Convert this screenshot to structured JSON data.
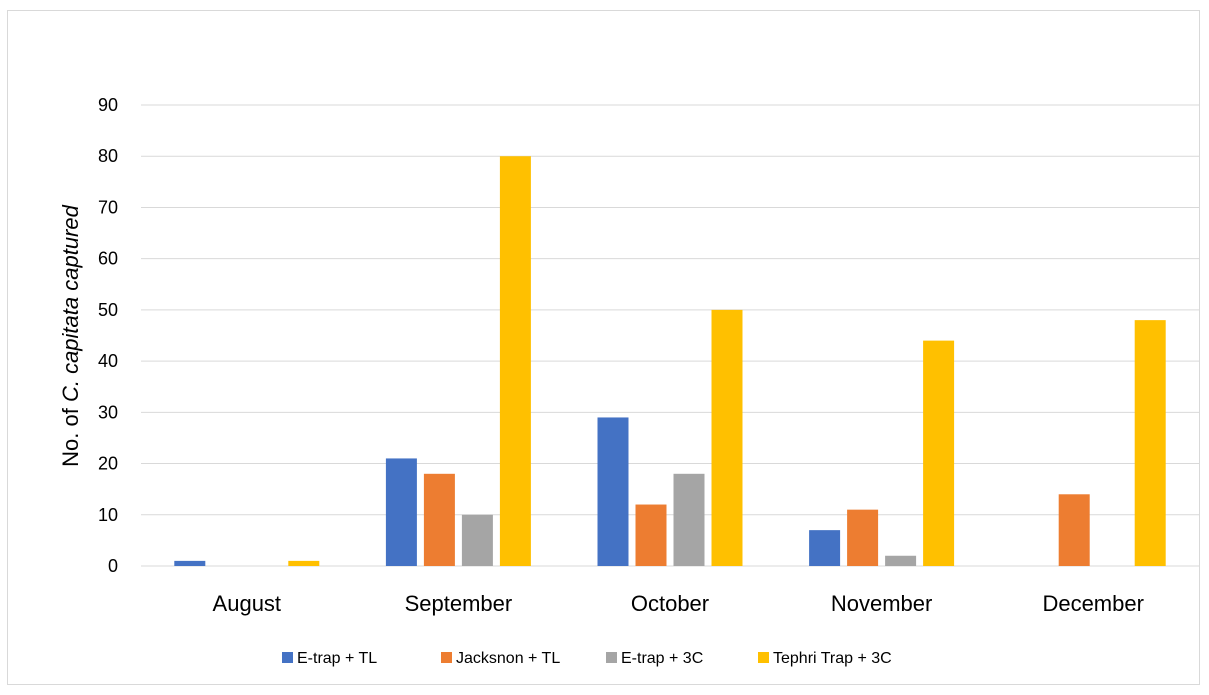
{
  "chart_data": {
    "type": "bar",
    "title": "",
    "xlabel": "",
    "ylabel_parts": [
      {
        "text": "No. of ",
        "italic": false
      },
      {
        "text": "C. capitata captured",
        "italic": true
      }
    ],
    "ylim": [
      0,
      90
    ],
    "yticks": [
      0,
      10,
      20,
      30,
      40,
      50,
      60,
      70,
      80,
      90
    ],
    "grid": true,
    "legend_position": "bottom",
    "categories": [
      "August",
      "September",
      "October",
      "November",
      "December"
    ],
    "series": [
      {
        "name": "E-trap + TL",
        "color": "#4472C4",
        "values": [
          1,
          21,
          29,
          7,
          0
        ]
      },
      {
        "name": "Jacksnon + TL",
        "color": "#ED7D31",
        "values": [
          0,
          18,
          12,
          11,
          14
        ]
      },
      {
        "name": "E-trap + 3C",
        "color": "#A5A5A5",
        "values": [
          0,
          10,
          18,
          2,
          0
        ]
      },
      {
        "name": "Tephri Trap + 3C",
        "color": "#FFC000",
        "values": [
          1,
          80,
          50,
          44,
          48
        ]
      }
    ]
  }
}
